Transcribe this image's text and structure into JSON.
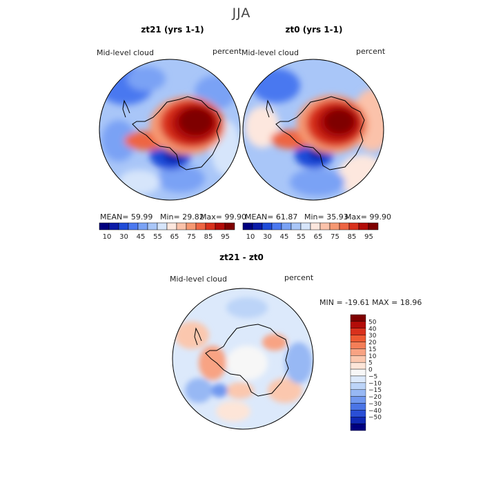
{
  "season": "JJA",
  "variable": "Mid-level cloud",
  "units": "percent",
  "panels": [
    {
      "title": "zt21 (yrs 1-1)",
      "mean": "MEAN=   59.99",
      "min": "Min=   29.82",
      "max": "Max=   99.90"
    },
    {
      "title": "zt0 (yrs 1-1)",
      "mean": "MEAN=   61.87",
      "min": "Min=   35.93",
      "max": "Max=   99.90"
    }
  ],
  "field_colorbar": {
    "colors": [
      "#00007f",
      "#0b1ba8",
      "#1f4bd8",
      "#4a78f0",
      "#7aa2f5",
      "#a9c6f8",
      "#d6e5fb",
      "#fde7de",
      "#fbc2aa",
      "#f69872",
      "#ee6543",
      "#d9311d",
      "#b30c09",
      "#7f0000"
    ],
    "labels": [
      "10",
      "30",
      "45",
      "55",
      "65",
      "75",
      "85",
      "95"
    ]
  },
  "diff_panel": {
    "title": "zt21 - zt0",
    "minmax": "MIN = -19.61 MAX =   18.96"
  },
  "diff_colorbar": {
    "colors": [
      "#7f0000",
      "#b30c09",
      "#d9311d",
      "#ee5a33",
      "#f47e58",
      "#f8a383",
      "#fbc7ae",
      "#fde5d8",
      "#f7f7f7",
      "#dce9fb",
      "#bcd4f8",
      "#97b8f4",
      "#7198ef",
      "#4b75e6",
      "#2a4fd6",
      "#1029b5",
      "#00007f"
    ],
    "labels": [
      "50",
      "40",
      "30",
      "20",
      "15",
      "10",
      "5",
      "0",
      "−5",
      "−10",
      "−15",
      "−20",
      "−30",
      "−40",
      "−50"
    ]
  }
}
